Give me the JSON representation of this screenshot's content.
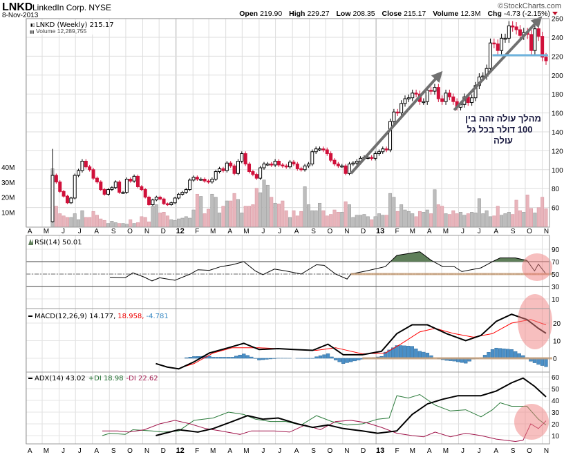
{
  "header": {
    "symbol": "LNKD",
    "company": "LinkedIn Corp. NYSE",
    "date": "8-Nov-2013",
    "watermark": "©StockCharts.com",
    "quote": {
      "open_label": "Open",
      "open": "219.90",
      "high_label": "High",
      "high": "229.27",
      "low_label": "Low",
      "low": "208.35",
      "close_label": "Close",
      "close": "215.17",
      "volume_label": "Volume",
      "volume": "12.3M",
      "chg_label": "Chg",
      "chg": "-4.73 (-2.15%)"
    }
  },
  "colors": {
    "up": "#ffffff",
    "down": "#d0103a",
    "vol_up": "#bdbdbd",
    "vol_down": "#e8b4bb",
    "macd_hist": "#4a8fc7",
    "rsi_fill": "#5f7f5a",
    "annotation_arrow": "#707070",
    "support_line": "#6fb3dd",
    "highlight": "#f08080",
    "baseline_marker": "#c8a07a"
  },
  "legend": {
    "price": "LNKD (Weekly) 215.17",
    "volume": "Volume 12,289,755",
    "rsi": "RSI(14) 50.01",
    "macd_name": "MACD(12,26,9) 14.177,",
    "macd_signal": "18.958,",
    "macd_hist": "-4.781",
    "adx_name": "ADX(14) 43.02",
    "adx_pdi": "+DI 18.98",
    "adx_mdi": "-DI 22.62"
  },
  "annotation_text": [
    "מהלך עולה זהה בין",
    "100 דולר בכל גל",
    "עולה"
  ],
  "chart_data": [
    {
      "type": "candlestick",
      "title": "LNKD (Weekly)",
      "interval": "weekly",
      "x_tick_labels": [
        "A",
        "M",
        "J",
        "J",
        "A",
        "S",
        "O",
        "N",
        "D",
        "12",
        "F",
        "M",
        "A",
        "M",
        "J",
        "J",
        "A",
        "S",
        "O",
        "N",
        "D",
        "13",
        "F",
        "M",
        "A",
        "M",
        "J",
        "J",
        "A",
        "S",
        "O",
        "N"
      ],
      "x_range": [
        "2011-04",
        "2013-11"
      ],
      "y_range": [
        40,
        260
      ],
      "y_ticks": [
        60,
        80,
        100,
        120,
        140,
        160,
        180,
        200,
        220,
        240,
        260
      ],
      "grid": true,
      "first_open": 45,
      "closes": [
        94,
        87,
        77,
        72,
        65,
        70,
        94,
        99,
        109,
        103,
        100,
        91,
        87,
        79,
        74,
        79,
        81,
        87,
        76,
        76,
        90,
        88,
        93,
        82,
        79,
        71,
        63,
        68,
        71,
        69,
        64,
        63,
        65,
        70,
        74,
        76,
        79,
        89,
        92,
        90,
        90,
        88,
        87,
        90,
        98,
        101,
        99,
        107,
        104,
        96,
        109,
        117,
        106,
        98,
        95,
        91,
        102,
        106,
        106,
        105,
        109,
        105,
        104,
        103,
        108,
        106,
        101,
        100,
        104,
        106,
        119,
        122,
        122,
        121,
        117,
        110,
        106,
        104,
        104,
        96,
        106,
        107,
        109,
        112,
        113,
        113,
        112,
        117,
        119,
        122,
        121,
        151,
        161,
        160,
        170,
        175,
        176,
        181,
        180,
        172,
        172,
        184,
        183,
        187,
        175,
        172,
        181,
        177,
        172,
        166,
        169,
        177,
        171,
        176,
        189,
        198,
        199,
        207,
        234,
        233,
        226,
        239,
        239,
        252,
        251,
        248,
        242,
        245,
        243,
        226,
        249,
        241,
        219,
        215.17
      ],
      "volume_M": [
        39,
        14,
        9,
        7.5,
        6.5,
        6.5,
        9,
        5,
        11,
        6.5,
        6.5,
        10.5,
        8,
        5.5,
        4.5,
        2.5,
        4,
        3,
        2.5,
        2.5,
        2,
        5,
        2.5,
        3,
        7,
        6.5,
        3.5,
        14,
        15,
        9.5,
        10,
        7.5,
        5,
        4.5,
        5.5,
        6,
        7,
        6,
        11.5,
        22,
        20.5,
        9,
        12,
        22,
        20,
        9.5,
        14,
        17.5,
        17.5,
        22.5,
        18.5,
        9.5,
        14,
        14,
        15,
        26,
        23,
        31.5,
        28,
        20,
        16,
        15.5,
        17.5,
        11,
        6.5,
        11,
        7.5,
        10.5,
        27,
        15,
        11,
        11,
        16,
        11,
        7.5,
        8.5,
        11.5,
        10,
        10,
        17,
        15,
        6.5,
        8,
        8,
        8.5,
        7,
        5,
        7,
        9,
        8,
        8,
        22.5,
        20,
        10.5,
        15,
        11.5,
        10.5,
        9,
        7,
        10.5,
        10,
        11.5,
        9,
        25,
        15,
        14,
        9,
        8.5,
        11,
        9,
        10,
        8,
        9,
        10,
        9.5,
        19,
        9,
        11,
        7,
        7.5,
        14,
        8,
        9,
        10,
        8.5,
        18,
        11,
        10,
        21.5,
        12.5,
        9.5,
        13,
        20,
        12.3
      ],
      "volume_ticks": [
        "10M",
        "20M",
        "30M",
        "40M"
      ],
      "annotations": {
        "arrows": [
          {
            "from": [
              "2012-11-16",
              96
            ],
            "to": [
              "2013-04-26",
              200
            ]
          },
          {
            "from": [
              "2013-05-24",
              163
            ],
            "to": [
              "2013-10-25",
              258
            ]
          }
        ],
        "support_line": {
          "price": 221,
          "from": "2013-08-02",
          "to": "2013-11-08"
        }
      }
    },
    {
      "type": "line",
      "title": "RSI(14)",
      "y_range": [
        0,
        100
      ],
      "y_ticks": [
        10,
        30,
        50,
        70,
        90
      ],
      "reference_lines": [
        30,
        50,
        70
      ],
      "points": [
        [
          "2011-09-02",
          45
        ],
        [
          "2011-09-30",
          44
        ],
        [
          "2011-10-14",
          52
        ],
        [
          "2011-11-04",
          45
        ],
        [
          "2011-11-18",
          39
        ],
        [
          "2011-12-02",
          44
        ],
        [
          "2011-12-30",
          40
        ],
        [
          "2012-01-27",
          50
        ],
        [
          "2012-02-10",
          57
        ],
        [
          "2012-03-02",
          56
        ],
        [
          "2012-03-23",
          62
        ],
        [
          "2012-04-13",
          65
        ],
        [
          "2012-05-04",
          70
        ],
        [
          "2012-05-25",
          55
        ],
        [
          "2012-06-08",
          49
        ],
        [
          "2012-06-29",
          58
        ],
        [
          "2012-07-20",
          55
        ],
        [
          "2012-08-17",
          50
        ],
        [
          "2012-09-14",
          65
        ],
        [
          "2012-09-28",
          64
        ],
        [
          "2012-10-19",
          50
        ],
        [
          "2012-11-09",
          42
        ],
        [
          "2012-11-16",
          50
        ],
        [
          "2012-12-14",
          55
        ],
        [
          "2013-01-18",
          62
        ],
        [
          "2013-02-08",
          80
        ],
        [
          "2013-03-22",
          86
        ],
        [
          "2013-04-12",
          72
        ],
        [
          "2013-05-03",
          62
        ],
        [
          "2013-05-24",
          62
        ],
        [
          "2013-06-07",
          54
        ],
        [
          "2013-07-12",
          60
        ],
        [
          "2013-08-02",
          70
        ],
        [
          "2013-08-16",
          76
        ],
        [
          "2013-09-13",
          76
        ],
        [
          "2013-10-04",
          72
        ],
        [
          "2013-10-18",
          55
        ],
        [
          "2013-10-25",
          66
        ],
        [
          "2013-11-08",
          50
        ]
      ]
    },
    {
      "type": "line",
      "title": "MACD(12,26,9)",
      "y_ticks": [
        0,
        10,
        20
      ],
      "series": [
        {
          "name": "MACD",
          "points": [
            [
              "2011-11-25",
              -3
            ],
            [
              "2011-12-16",
              -5
            ],
            [
              "2012-01-06",
              -6
            ],
            [
              "2012-02-03",
              -2
            ],
            [
              "2012-03-02",
              3
            ],
            [
              "2012-04-06",
              6
            ],
            [
              "2012-05-04",
              8.5
            ],
            [
              "2012-06-01",
              5
            ],
            [
              "2012-07-06",
              5.5
            ],
            [
              "2012-08-03",
              5
            ],
            [
              "2012-09-07",
              4.5
            ],
            [
              "2012-10-05",
              8
            ],
            [
              "2012-11-02",
              2
            ],
            [
              "2012-12-07",
              2
            ],
            [
              "2013-01-11",
              4
            ],
            [
              "2013-02-08",
              14
            ],
            [
              "2013-03-08",
              19
            ],
            [
              "2013-04-05",
              19
            ],
            [
              "2013-05-10",
              14
            ],
            [
              "2013-06-14",
              10
            ],
            [
              "2013-07-12",
              13
            ],
            [
              "2013-08-09",
              21
            ],
            [
              "2013-09-06",
              25
            ],
            [
              "2013-10-04",
              22
            ],
            [
              "2013-10-25",
              17
            ],
            [
              "2013-11-08",
              14.177
            ]
          ]
        },
        {
          "name": "Signal",
          "points": [
            [
              "2012-01-13",
              -5
            ],
            [
              "2012-02-03",
              -3
            ],
            [
              "2012-03-09",
              3
            ],
            [
              "2012-04-13",
              6
            ],
            [
              "2012-06-01",
              6
            ],
            [
              "2012-08-03",
              5
            ],
            [
              "2012-09-14",
              4.5
            ],
            [
              "2012-10-19",
              6
            ],
            [
              "2012-12-07",
              2.5
            ],
            [
              "2013-01-18",
              3
            ],
            [
              "2013-02-15",
              8
            ],
            [
              "2013-03-22",
              15
            ],
            [
              "2013-04-19",
              17
            ],
            [
              "2013-05-24",
              14
            ],
            [
              "2013-06-28",
              12
            ],
            [
              "2013-08-02",
              14
            ],
            [
              "2013-09-06",
              20
            ],
            [
              "2013-10-11",
              22
            ],
            [
              "2013-11-08",
              18.958
            ]
          ]
        }
      ]
    },
    {
      "type": "line",
      "title": "ADX(14)",
      "y_ticks": [
        10,
        20,
        30,
        40,
        50,
        60
      ],
      "series": [
        {
          "name": "ADX",
          "points": [
            [
              "2011-11-25",
              10
            ],
            [
              "2012-01-06",
              15
            ],
            [
              "2012-02-10",
              13
            ],
            [
              "2012-03-09",
              16
            ],
            [
              "2012-04-13",
              22
            ],
            [
              "2012-05-11",
              27
            ],
            [
              "2012-06-08",
              24
            ],
            [
              "2012-07-06",
              25
            ],
            [
              "2012-08-10",
              20
            ],
            [
              "2012-09-07",
              17
            ],
            [
              "2012-10-05",
              19
            ],
            [
              "2012-11-02",
              16
            ],
            [
              "2012-12-07",
              14
            ],
            [
              "2013-01-04",
              12
            ],
            [
              "2013-02-08",
              14
            ],
            [
              "2013-03-08",
              28
            ],
            [
              "2013-04-05",
              37
            ],
            [
              "2013-05-03",
              41
            ],
            [
              "2013-05-31",
              44
            ],
            [
              "2013-07-12",
              44
            ],
            [
              "2013-08-09",
              48
            ],
            [
              "2013-09-06",
              55
            ],
            [
              "2013-09-27",
              59
            ],
            [
              "2013-10-18",
              52
            ],
            [
              "2013-11-08",
              43.02
            ]
          ]
        },
        {
          "name": "+DI",
          "points": [
            [
              "2011-08-19",
              10
            ],
            [
              "2011-09-02",
              12
            ],
            [
              "2011-09-30",
              11
            ],
            [
              "2011-10-14",
              15
            ],
            [
              "2011-11-18",
              14
            ],
            [
              "2011-12-09",
              13
            ],
            [
              "2012-01-06",
              14
            ],
            [
              "2012-02-03",
              23
            ],
            [
              "2012-03-09",
              25
            ],
            [
              "2012-04-06",
              30
            ],
            [
              "2012-05-04",
              28
            ],
            [
              "2012-05-25",
              24
            ],
            [
              "2012-06-22",
              22
            ],
            [
              "2012-07-20",
              22
            ],
            [
              "2012-08-17",
              19
            ],
            [
              "2012-09-14",
              27
            ],
            [
              "2012-10-12",
              22
            ],
            [
              "2012-11-09",
              19
            ],
            [
              "2012-12-07",
              20
            ],
            [
              "2013-01-04",
              24
            ],
            [
              "2013-01-25",
              25
            ],
            [
              "2013-02-08",
              44
            ],
            [
              "2013-03-01",
              42
            ],
            [
              "2013-03-22",
              45
            ],
            [
              "2013-04-19",
              36
            ],
            [
              "2013-05-17",
              31
            ],
            [
              "2013-06-14",
              32
            ],
            [
              "2013-07-12",
              26
            ],
            [
              "2013-08-02",
              32
            ],
            [
              "2013-08-16",
              38
            ],
            [
              "2013-09-06",
              35
            ],
            [
              "2013-10-04",
              35
            ],
            [
              "2013-10-25",
              24
            ],
            [
              "2013-11-08",
              18.98
            ]
          ]
        },
        {
          "name": "-DI",
          "points": [
            [
              "2011-08-19",
              14
            ],
            [
              "2011-09-16",
              14
            ],
            [
              "2011-10-07",
              13
            ],
            [
              "2011-11-04",
              15
            ],
            [
              "2011-12-02",
              20
            ],
            [
              "2011-12-30",
              23
            ],
            [
              "2012-01-27",
              20
            ],
            [
              "2012-02-24",
              16
            ],
            [
              "2012-03-23",
              14
            ],
            [
              "2012-04-27",
              11
            ],
            [
              "2012-05-18",
              14
            ],
            [
              "2012-06-29",
              14
            ],
            [
              "2012-07-27",
              13
            ],
            [
              "2012-08-24",
              19
            ],
            [
              "2012-09-21",
              15
            ],
            [
              "2012-10-19",
              22
            ],
            [
              "2012-11-16",
              23
            ],
            [
              "2012-12-14",
              21
            ],
            [
              "2013-01-11",
              17
            ],
            [
              "2013-02-08",
              12
            ],
            [
              "2013-03-08",
              10
            ],
            [
              "2013-03-29",
              9
            ],
            [
              "2013-04-19",
              13
            ],
            [
              "2013-05-17",
              9
            ],
            [
              "2013-06-14",
              12
            ],
            [
              "2013-07-12",
              10
            ],
            [
              "2013-08-09",
              7
            ],
            [
              "2013-09-13",
              5
            ],
            [
              "2013-09-27",
              6
            ],
            [
              "2013-10-11",
              20
            ],
            [
              "2013-10-25",
              16
            ],
            [
              "2013-11-08",
              22.62
            ]
          ]
        }
      ]
    }
  ]
}
